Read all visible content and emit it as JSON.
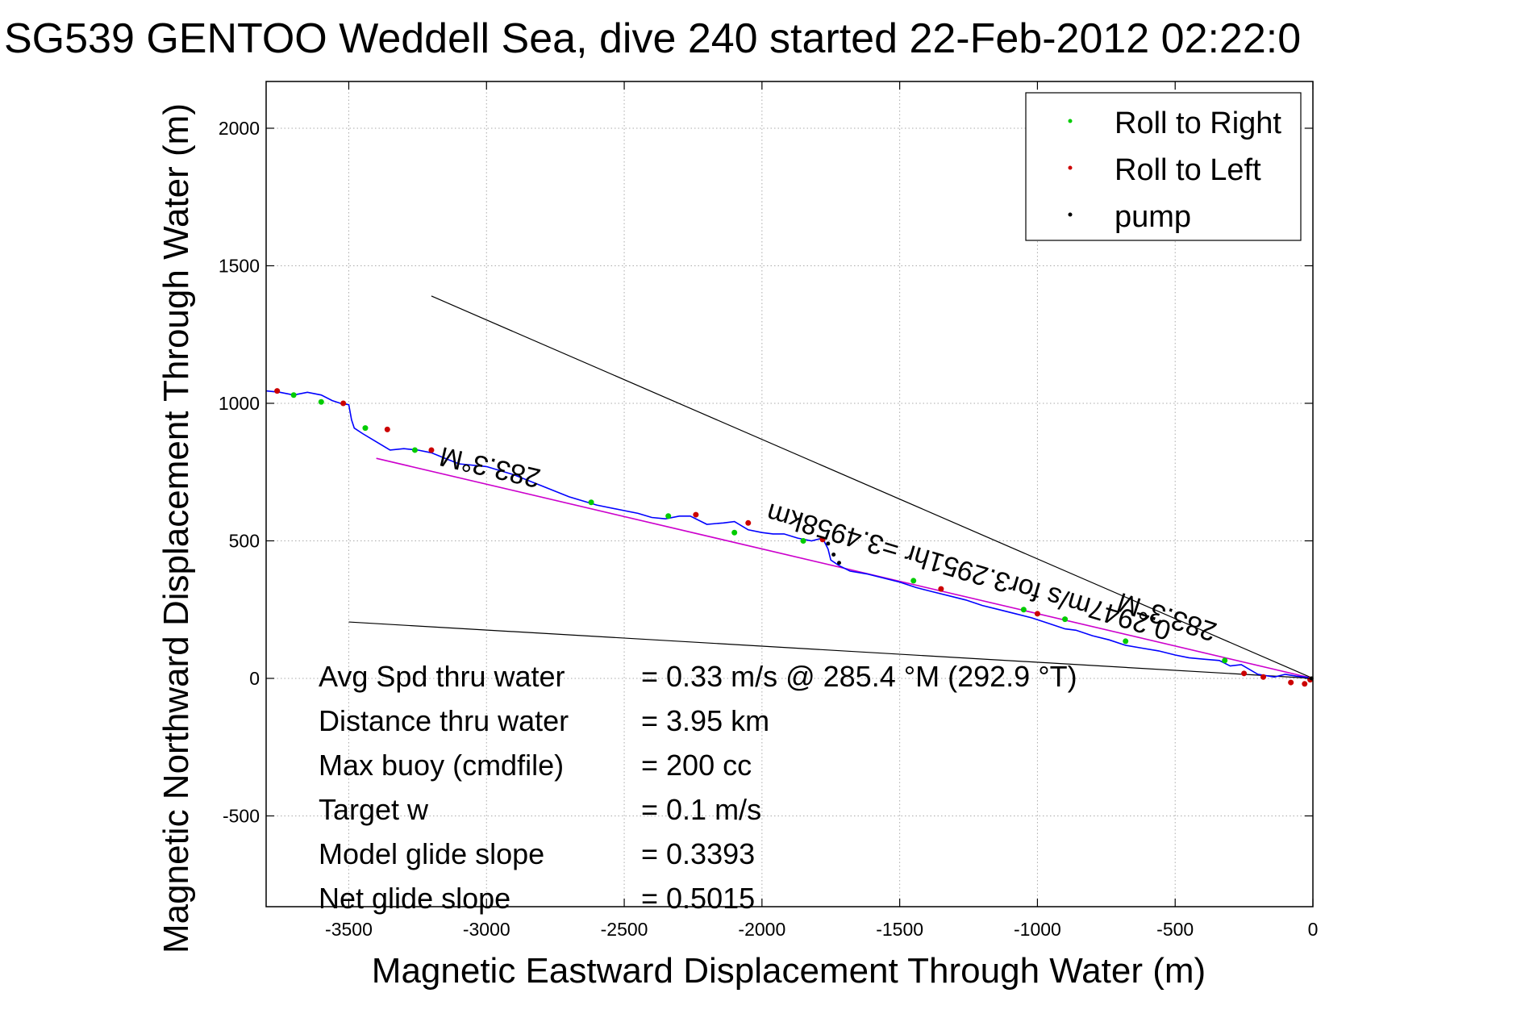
{
  "chart_data": {
    "type": "line",
    "title": "SG539 GENTOO Weddell Sea, dive 240 started 22-Feb-2012 02:22:0",
    "xlabel": "Magnetic Eastward Displacement Through Water (m)",
    "ylabel": "Magnetic Northward Displacement Through Water (m)",
    "xlim": [
      -3800,
      0
    ],
    "ylim": [
      -830,
      2170
    ],
    "xticks": [
      -3500,
      -3000,
      -2500,
      -2000,
      -1500,
      -1000,
      -500,
      0
    ],
    "xtick_labels": [
      "-3500",
      "-3000",
      "-2500",
      "-2000",
      "-1500",
      "-1000",
      "-500",
      "0"
    ],
    "yticks": [
      -500,
      0,
      500,
      1000,
      1500,
      2000
    ],
    "ytick_labels": [
      "-500",
      "0",
      "500",
      "1000",
      "1500",
      "2000"
    ],
    "grid": true,
    "legend_position": "top-right",
    "legend": [
      {
        "label": "Roll to Right",
        "color": "#00cc00"
      },
      {
        "label": "Roll to Left",
        "color": "#cc0000"
      },
      {
        "label": "pump",
        "color": "#000000"
      }
    ],
    "colors": {
      "track": "#0000ff",
      "fit_line": "#cc00cc",
      "guide": "#000000",
      "roll_right": "#00cc00",
      "roll_left": "#cc0000"
    },
    "track": {
      "x": [
        0,
        -30,
        -60,
        -100,
        -140,
        -200,
        -260,
        -300,
        -340,
        -400,
        -450,
        -500,
        -560,
        -620,
        -680,
        -740,
        -800,
        -860,
        -900,
        -960,
        -1020,
        -1080,
        -1140,
        -1200,
        -1260,
        -1320,
        -1380,
        -1440,
        -1500,
        -1560,
        -1620,
        -1680,
        -1720,
        -1750,
        -1760,
        -1780,
        -1820,
        -1870,
        -1920,
        -1960,
        -2000,
        -2050,
        -2100,
        -2140,
        -2200,
        -2260,
        -2300,
        -2350,
        -2400,
        -2450,
        -2500,
        -2600,
        -2700,
        -2800,
        -2900,
        -3000,
        -3100,
        -3150,
        -3200,
        -3250,
        -3300,
        -3350,
        -3400,
        -3450,
        -3480,
        -3490,
        -3500,
        -3530,
        -3560,
        -3600,
        -3650,
        -3700,
        -3750,
        -3800
      ],
      "y": [
        0,
        5,
        8,
        15,
        5,
        15,
        50,
        45,
        65,
        70,
        75,
        85,
        100,
        110,
        120,
        140,
        155,
        175,
        180,
        200,
        220,
        235,
        250,
        265,
        285,
        300,
        315,
        330,
        350,
        365,
        380,
        390,
        410,
        430,
        470,
        510,
        500,
        510,
        525,
        525,
        530,
        540,
        570,
        565,
        560,
        590,
        590,
        580,
        585,
        600,
        610,
        630,
        660,
        700,
        740,
        770,
        780,
        800,
        820,
        830,
        835,
        830,
        860,
        890,
        910,
        940,
        995,
        1000,
        1010,
        1030,
        1040,
        1030,
        1040,
        1045
      ]
    },
    "roll_right_points": {
      "x": [
        -3700,
        -3600,
        -3440,
        -3260,
        -2620,
        -2340,
        -2100,
        -1850,
        -1450,
        -1050,
        -900,
        -680,
        -320
      ],
      "y": [
        1030,
        1005,
        910,
        830,
        640,
        590,
        530,
        500,
        355,
        250,
        215,
        135,
        65
      ]
    },
    "roll_left_points": {
      "x": [
        -3760,
        -3520,
        -3360,
        -3200,
        -2240,
        -2050,
        -1780,
        -1350,
        -1000,
        -250,
        -180,
        -80,
        -30,
        -10
      ],
      "y": [
        1045,
        1000,
        905,
        830,
        595,
        565,
        505,
        325,
        235,
        18,
        5,
        -15,
        -20,
        -5
      ]
    },
    "pump_points": {
      "x": [
        -1760,
        -1740,
        -1720,
        -5
      ],
      "y": [
        490,
        450,
        420,
        0
      ]
    },
    "fit_line": {
      "x": [
        0,
        -3400
      ],
      "y": [
        0,
        800
      ]
    },
    "guide_lines": [
      {
        "x": [
          0,
          -3200
        ],
        "y": [
          0,
          1390
        ]
      },
      {
        "x": [
          0,
          -3500
        ],
        "y": [
          0,
          205
        ]
      }
    ],
    "annotations": [
      {
        "text": "283.3°M",
        "x": -2980,
        "y": 800,
        "rotation_deg": 193
      },
      {
        "text": "0.2947m/s for3.2951hr =3.4958km",
        "x": -1240,
        "y": 420,
        "rotation_deg": 196.5
      },
      {
        "text": "283.3°M",
        "x": -520,
        "y": 255,
        "rotation_deg": 198
      }
    ],
    "stats": [
      {
        "label": "Avg Spd thru water",
        "value": "=  0.33 m/s @ 285.4 °M (292.9 °T)"
      },
      {
        "label": "Distance thru water",
        "value": "=  3.95 km"
      },
      {
        "label": "Max buoy (cmdfile)",
        "value": "= 200 cc"
      },
      {
        "label": "Target w",
        "value": "= 0.1 m/s"
      },
      {
        "label": "Model glide slope",
        "value": "= 0.3393"
      },
      {
        "label": "Net glide slope",
        "value": "= 0.5015"
      }
    ]
  }
}
